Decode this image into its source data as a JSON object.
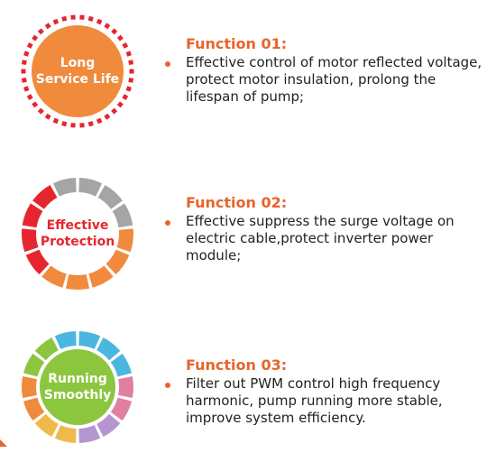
{
  "features": [
    {
      "badge": {
        "lines": [
          "Long",
          "Service Life"
        ],
        "fill": "#f08a3c",
        "ring": "dotted",
        "ring_color": "#e6262e"
      },
      "title": "Function 01:",
      "description": "Effective control of motor reflected voltage, protect motor insulation, prolong the lifespan of pump;"
    },
    {
      "badge": {
        "lines": [
          "Effective",
          "Protection"
        ],
        "fill": "#ffffff",
        "text_color": "#e6262e",
        "ring": "segmented",
        "segment_colors": [
          "#a5a5a5",
          "#a5a5a5",
          "#a5a5a5",
          "#f08a3c",
          "#f08a3c",
          "#f08a3c",
          "#f08a3c",
          "#f08a3c",
          "#e6262e",
          "#e6262e",
          "#e6262e",
          "#e6262e",
          "#a5a5a5"
        ]
      },
      "title": "Function 02:",
      "description": "Effective suppress the surge voltage on electric cable,protect inverter power module;"
    },
    {
      "badge": {
        "lines": [
          "Running",
          "Smoothly"
        ],
        "fill": "#8cc63f",
        "ring": "segmented",
        "segment_colors": [
          "#4bb6e0",
          "#4bb6e0",
          "#4bb6e0",
          "#e07fa0",
          "#e07fa0",
          "#b595cf",
          "#b595cf",
          "#f0b94c",
          "#f0b94c",
          "#f08a3c",
          "#f08a3c",
          "#8cc63f",
          "#8cc63f",
          "#4bb6e0"
        ]
      },
      "title": "Function 03:",
      "description": "Filter out PWM control high frequency harmonic, pump running more stable, improve system efficiency."
    }
  ]
}
